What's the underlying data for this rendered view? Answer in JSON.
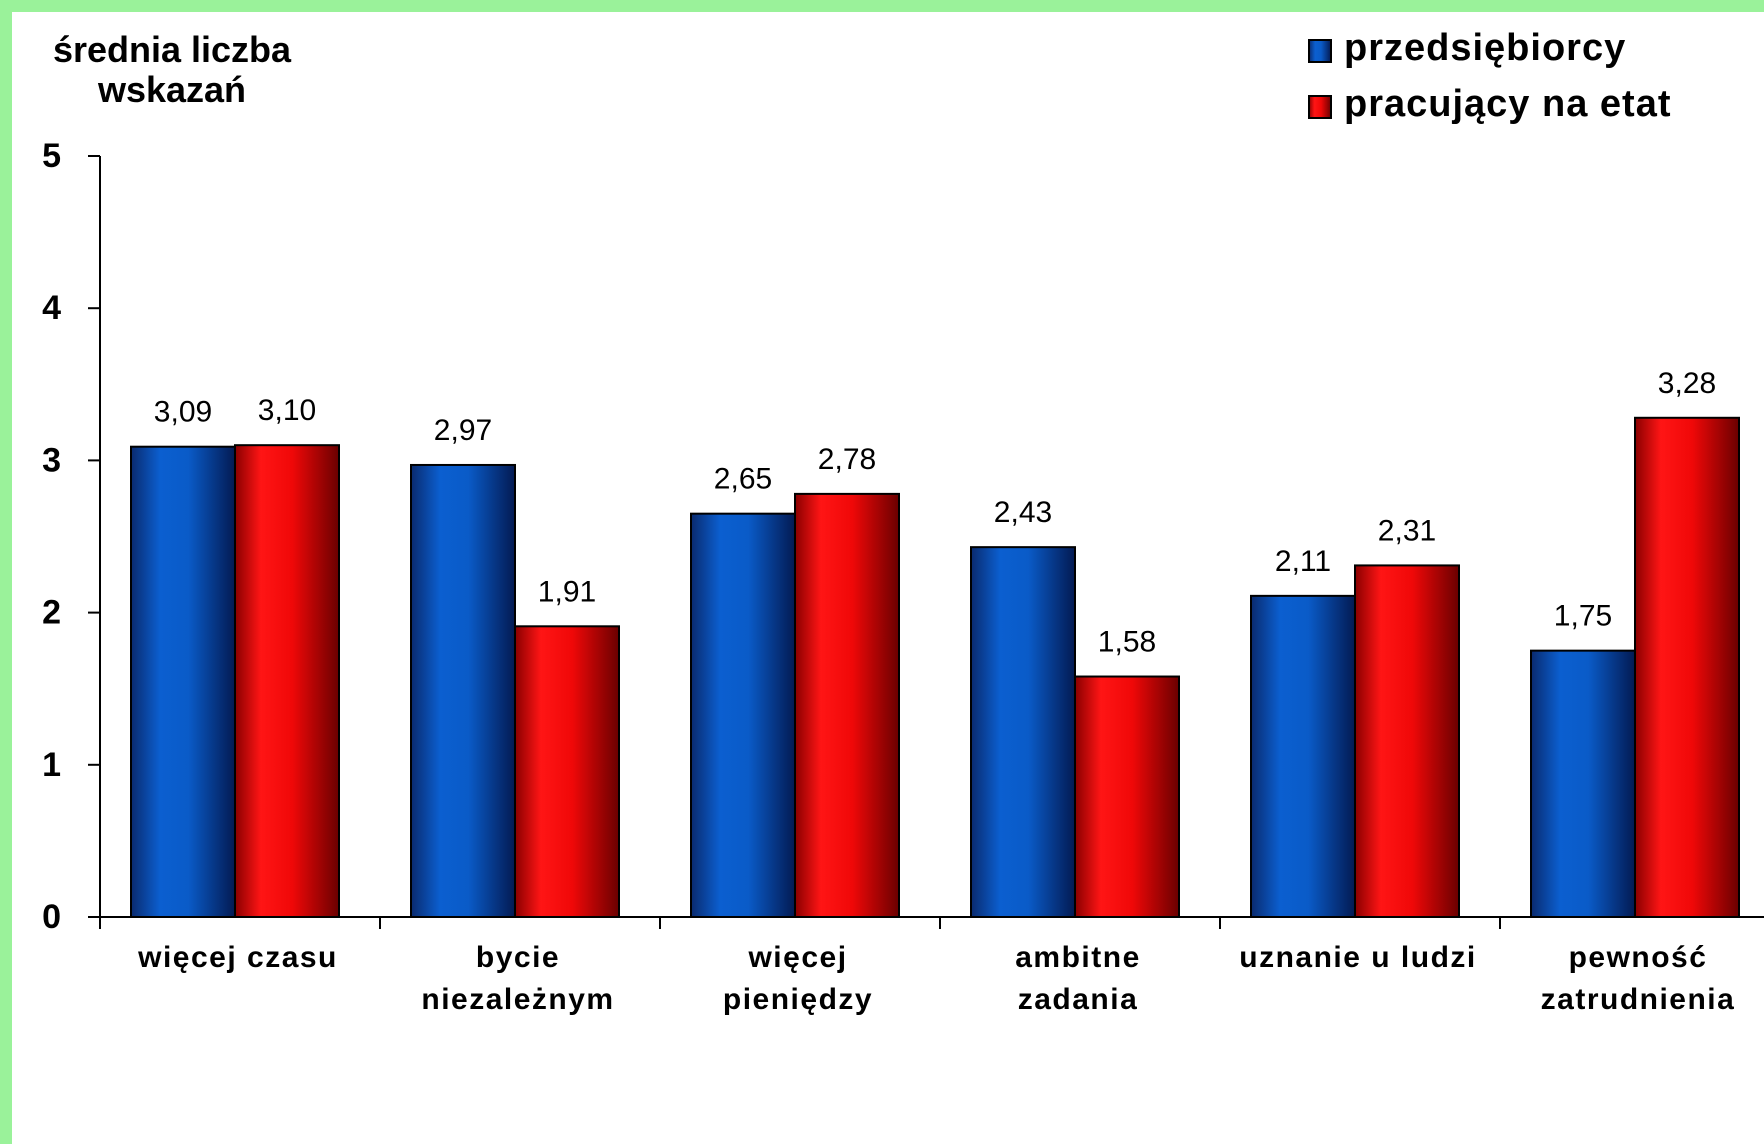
{
  "chart_data": {
    "type": "bar",
    "title": "",
    "ylabel": [
      "średnia liczba",
      "wskazań"
    ],
    "xlabel": "",
    "ylim": [
      0,
      5
    ],
    "yticks": [
      "0",
      "1",
      "2",
      "3",
      "4",
      "5"
    ],
    "categories": [
      [
        "więcej czasu"
      ],
      [
        "bycie",
        "niezależnym"
      ],
      [
        "więcej",
        "pieniędzy"
      ],
      [
        "ambitne",
        "zadania"
      ],
      [
        "uznanie u ludzi"
      ],
      [
        "pewność",
        "zatrudnienia"
      ]
    ],
    "series": [
      {
        "name": "przedsiębiorcy",
        "color": "#0050B8",
        "values": [
          3.09,
          2.97,
          2.65,
          2.43,
          2.11,
          1.75
        ],
        "labels": [
          "3,09",
          "2,97",
          "2,65",
          "2,43",
          "2,11",
          "1,75"
        ]
      },
      {
        "name": "pracujący na etat",
        "color": "#E0000A",
        "values": [
          3.1,
          1.91,
          2.78,
          1.58,
          2.31,
          3.28
        ],
        "labels": [
          "3,10",
          "1,91",
          "2,78",
          "1,58",
          "2,31",
          "3,28"
        ]
      }
    ],
    "legend_position": "top-right",
    "grid": false
  }
}
